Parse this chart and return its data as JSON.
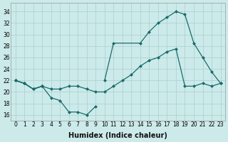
{
  "xlabel": "Humidex (Indice chaleur)",
  "xlim": [
    -0.5,
    23.5
  ],
  "ylim": [
    15,
    35.5
  ],
  "yticks": [
    16,
    18,
    20,
    22,
    24,
    26,
    28,
    30,
    32,
    34
  ],
  "xticks": [
    0,
    1,
    2,
    3,
    4,
    5,
    6,
    7,
    8,
    9,
    10,
    11,
    12,
    13,
    14,
    15,
    16,
    17,
    18,
    19,
    20,
    21,
    22,
    23
  ],
  "bg_color": "#cceaea",
  "grid_color": "#aacece",
  "line_color": "#1a6b6b",
  "curve1_x": [
    0,
    1,
    2,
    3,
    4,
    5,
    6,
    7,
    8,
    9
  ],
  "curve1_y": [
    22,
    21.5,
    20.5,
    21,
    19,
    18.5,
    16.5,
    16.5,
    16,
    17.5
  ],
  "curve2_x": [
    0,
    1,
    2,
    3,
    4,
    5,
    6,
    7,
    8,
    9,
    10,
    11,
    12,
    13,
    14,
    15,
    16,
    17,
    18,
    19,
    20,
    21,
    22,
    23
  ],
  "curve2_y": [
    22,
    21.5,
    20.5,
    21,
    20.5,
    20.5,
    21,
    21,
    20.5,
    20,
    20,
    21,
    22,
    23,
    24.5,
    25.5,
    26,
    27,
    27.5,
    21,
    21,
    21.5,
    21,
    21.5
  ],
  "curve3_x": [
    0,
    1,
    2,
    3,
    10,
    11,
    12,
    13,
    14,
    15,
    16,
    17,
    18,
    19,
    20,
    21,
    22,
    23
  ],
  "curve3_y": [
    22,
    21.5,
    20.5,
    21,
    22,
    28.5,
    null,
    null,
    28.5,
    30.5,
    32,
    33,
    34,
    33.5,
    28.5,
    26,
    23.5,
    21.5
  ]
}
